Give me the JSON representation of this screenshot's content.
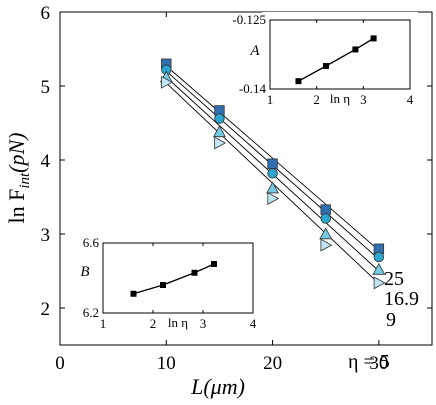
{
  "chart_data": [
    {
      "type": "scatter",
      "xlabel_main": "L",
      "xlabel_unit": "(μm)",
      "ylabel_main": "ln F",
      "ylabel_sub": "int",
      "ylabel_unit": "(pN)",
      "xlim": [
        0,
        35
      ],
      "ylim": [
        1.5,
        6
      ],
      "xticks": [
        0,
        10,
        20,
        30
      ],
      "yticks": [
        2,
        3,
        4,
        5,
        6
      ],
      "x": [
        10,
        15,
        20,
        25,
        30
      ],
      "series": [
        {
          "name": "25",
          "marker": "square",
          "color": "#2f6fb0",
          "values": [
            5.3,
            4.67,
            3.95,
            3.33,
            2.8
          ],
          "fit": [
            [
              10,
              5.27
            ],
            [
              30,
              2.78
            ]
          ]
        },
        {
          "name": "16.9",
          "marker": "circle",
          "color": "#2aa6cf",
          "values": [
            5.22,
            4.56,
            3.82,
            3.21,
            2.69
          ],
          "fit": [
            [
              10,
              5.2
            ],
            [
              30,
              2.66
            ]
          ]
        },
        {
          "name": "9",
          "marker": "triangle-up",
          "color": "#74c9e3",
          "values": [
            5.12,
            4.38,
            3.62,
            3.0,
            2.52
          ],
          "fit": [
            [
              10,
              5.12
            ],
            [
              30,
              2.5
            ]
          ]
        },
        {
          "name": "η = 5",
          "marker": "triangle-right",
          "color": "#bfe6f2",
          "values": [
            5.05,
            4.23,
            3.48,
            2.85,
            2.34
          ],
          "fit": [
            [
              10,
              5.04
            ],
            [
              30,
              2.33
            ]
          ]
        }
      ]
    },
    {
      "type": "line",
      "ylabel": "A",
      "xlabel": "ln η",
      "xlim": [
        1,
        4
      ],
      "ylim": [
        -0.14,
        -0.125
      ],
      "xticks": [
        1,
        2,
        3,
        4
      ],
      "yticks": [
        -0.14,
        -0.125
      ],
      "ytick_labels": [
        "-0.14",
        "-0.125"
      ],
      "x": [
        1.61,
        2.2,
        2.83,
        3.22
      ],
      "values": [
        -0.1383,
        -0.135,
        -0.1314,
        -0.129
      ]
    },
    {
      "type": "line",
      "ylabel": "B",
      "xlabel": "ln η",
      "xlim": [
        1,
        4
      ],
      "ylim": [
        6.2,
        6.6
      ],
      "xticks": [
        1,
        2,
        3,
        4
      ],
      "yticks": [
        6.2,
        6.6
      ],
      "ytick_labels": [
        "6.2",
        "6.6"
      ],
      "x": [
        1.61,
        2.2,
        2.83,
        3.22
      ],
      "values": [
        6.31,
        6.36,
        6.43,
        6.48
      ]
    }
  ]
}
